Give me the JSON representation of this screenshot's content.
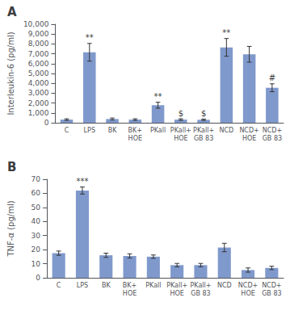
{
  "chart_data": [
    {
      "type": "bar",
      "title": "A",
      "categories": [
        "C",
        "LPS",
        "BK",
        "BK+\nHOE",
        "PKall",
        "PKall+\nHOE",
        "PKall+\nGB 83",
        "NCD",
        "NCD+\nHOE",
        "NCD+\nGB 83"
      ],
      "values": [
        320,
        7150,
        380,
        320,
        1780,
        320,
        300,
        7650,
        6950,
        3550
      ],
      "errors": [
        80,
        900,
        100,
        80,
        300,
        80,
        70,
        900,
        800,
        400
      ],
      "ylabel": "Interleukin-6 (pg/ml)",
      "ylim": [
        0,
        10000
      ],
      "yticks": [
        0,
        1000,
        2000,
        3000,
        4000,
        5000,
        6000,
        7000,
        8000,
        9000,
        10000
      ],
      "color": "#8099cc",
      "grid": false,
      "annotations": [
        {
          "text": "**",
          "x": "LPS"
        },
        {
          "text": "**",
          "x": "PKall"
        },
        {
          "text": "$",
          "x": "PKall+\nHOE"
        },
        {
          "text": "$",
          "x": "PKall+\nGB 83"
        },
        {
          "text": "**",
          "x": "NCD"
        },
        {
          "text": "#",
          "x": "NCD+\nGB 83"
        }
      ]
    },
    {
      "type": "bar",
      "title": "B",
      "categories": [
        "C",
        "LPS",
        "BK",
        "BK+\nHOE",
        "PKall",
        "PKall+\nHOE",
        "PKall+\nGB 83",
        "NCD",
        "NCD+\nHOE",
        "NCD+\nGB 83"
      ],
      "values": [
        17.5,
        62.0,
        16.0,
        15.5,
        15.0,
        9.0,
        9.0,
        21.5,
        5.5,
        7.0
      ],
      "errors": [
        1.5,
        2.5,
        1.5,
        1.5,
        1.2,
        1.2,
        1.2,
        3.0,
        1.5,
        1.2
      ],
      "ylabel": "TNF-α (pg/ml)",
      "ylim": [
        0,
        70
      ],
      "yticks": [
        0,
        10,
        20,
        30,
        40,
        50,
        60,
        70
      ],
      "color": "#8099cc",
      "grid": false,
      "annotations": [
        {
          "text": "***",
          "x": "LPS"
        }
      ]
    }
  ]
}
